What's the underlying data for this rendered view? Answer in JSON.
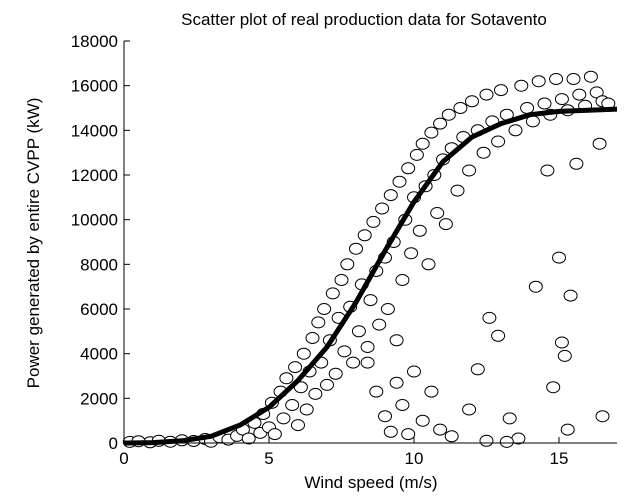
{
  "chart_data": {
    "type": "scatter",
    "title": "Scatter plot of real production data for Sotavento",
    "xlabel": "Wind speed (m/s)",
    "ylabel": "Power generated by entire CVPP (kW)",
    "xlim": [
      0,
      17
    ],
    "ylim": [
      0,
      18000
    ],
    "x_ticks": [
      0,
      5,
      10,
      15
    ],
    "y_ticks": [
      0,
      2000,
      4000,
      6000,
      8000,
      10000,
      12000,
      14000,
      16000,
      18000
    ],
    "grid": false,
    "legend": "none",
    "series": [
      {
        "kind": "scatter",
        "marker": "open-circle",
        "color": "#000000",
        "points": [
          [
            0.2,
            50
          ],
          [
            0.5,
            80
          ],
          [
            0.9,
            30
          ],
          [
            1.2,
            100
          ],
          [
            1.6,
            60
          ],
          [
            2.0,
            120
          ],
          [
            2.4,
            90
          ],
          [
            2.8,
            180
          ],
          [
            3.0,
            60
          ],
          [
            3.3,
            260
          ],
          [
            3.6,
            150
          ],
          [
            3.9,
            320
          ],
          [
            4.1,
            600
          ],
          [
            4.3,
            200
          ],
          [
            4.5,
            900
          ],
          [
            4.7,
            450
          ],
          [
            4.8,
            1300
          ],
          [
            5.0,
            700
          ],
          [
            5.1,
            1800
          ],
          [
            5.2,
            400
          ],
          [
            5.4,
            2300
          ],
          [
            5.5,
            1100
          ],
          [
            5.6,
            2900
          ],
          [
            5.8,
            1700
          ],
          [
            5.9,
            3400
          ],
          [
            6.0,
            800
          ],
          [
            6.1,
            2500
          ],
          [
            6.2,
            4000
          ],
          [
            6.3,
            1500
          ],
          [
            6.4,
            3200
          ],
          [
            6.5,
            4700
          ],
          [
            6.6,
            2200
          ],
          [
            6.7,
            5400
          ],
          [
            6.8,
            3600
          ],
          [
            6.9,
            6000
          ],
          [
            7.0,
            2600
          ],
          [
            7.1,
            4600
          ],
          [
            7.2,
            6700
          ],
          [
            7.3,
            3100
          ],
          [
            7.4,
            5600
          ],
          [
            7.5,
            7300
          ],
          [
            7.6,
            4100
          ],
          [
            7.7,
            8000
          ],
          [
            7.8,
            6100
          ],
          [
            7.9,
            3600
          ],
          [
            8.0,
            8700
          ],
          [
            8.1,
            5000
          ],
          [
            8.2,
            7100
          ],
          [
            8.3,
            9300
          ],
          [
            8.4,
            4300
          ],
          [
            8.5,
            6400
          ],
          [
            8.6,
            9900
          ],
          [
            8.7,
            7700
          ],
          [
            8.8,
            5300
          ],
          [
            8.9,
            10500
          ],
          [
            9.0,
            8300
          ],
          [
            9.1,
            6000
          ],
          [
            9.2,
            11100
          ],
          [
            9.3,
            9000
          ],
          [
            9.4,
            4600
          ],
          [
            9.5,
            11700
          ],
          [
            9.6,
            7300
          ],
          [
            9.7,
            10000
          ],
          [
            9.8,
            12300
          ],
          [
            9.9,
            8500
          ],
          [
            10.0,
            11000
          ],
          [
            10.1,
            12900
          ],
          [
            10.2,
            9500
          ],
          [
            10.3,
            13400
          ],
          [
            10.4,
            11500
          ],
          [
            10.5,
            8000
          ],
          [
            10.6,
            13900
          ],
          [
            10.7,
            12000
          ],
          [
            10.8,
            10300
          ],
          [
            10.9,
            14300
          ],
          [
            11.0,
            12700
          ],
          [
            11.1,
            9800
          ],
          [
            11.2,
            14700
          ],
          [
            11.3,
            13200
          ],
          [
            11.5,
            11300
          ],
          [
            11.6,
            15000
          ],
          [
            11.7,
            13700
          ],
          [
            11.9,
            12200
          ],
          [
            12.0,
            15300
          ],
          [
            12.2,
            14000
          ],
          [
            12.4,
            13000
          ],
          [
            12.5,
            15600
          ],
          [
            12.7,
            14400
          ],
          [
            12.9,
            13500
          ],
          [
            13.0,
            15800
          ],
          [
            13.2,
            14700
          ],
          [
            13.5,
            14000
          ],
          [
            13.7,
            16000
          ],
          [
            13.9,
            15000
          ],
          [
            14.1,
            14400
          ],
          [
            14.3,
            16200
          ],
          [
            14.5,
            15200
          ],
          [
            14.7,
            14700
          ],
          [
            14.9,
            16300
          ],
          [
            15.1,
            15400
          ],
          [
            15.3,
            14900
          ],
          [
            15.5,
            16300
          ],
          [
            15.7,
            15600
          ],
          [
            15.9,
            15100
          ],
          [
            16.1,
            16400
          ],
          [
            16.3,
            15700
          ],
          [
            16.5,
            15300
          ],
          [
            16.7,
            15200
          ],
          [
            16.4,
            13400
          ],
          [
            15.6,
            12500
          ],
          [
            14.6,
            12200
          ],
          [
            8.4,
            3600
          ],
          [
            8.7,
            2300
          ],
          [
            9.0,
            1200
          ],
          [
            9.2,
            500
          ],
          [
            9.4,
            2700
          ],
          [
            9.6,
            1700
          ],
          [
            9.8,
            400
          ],
          [
            10.0,
            3200
          ],
          [
            10.3,
            1000
          ],
          [
            10.6,
            2300
          ],
          [
            10.9,
            600
          ],
          [
            11.3,
            300
          ],
          [
            11.9,
            1500
          ],
          [
            12.2,
            3300
          ],
          [
            12.6,
            5600
          ],
          [
            12.9,
            4800
          ],
          [
            13.3,
            1100
          ],
          [
            13.6,
            200
          ],
          [
            14.2,
            7000
          ],
          [
            14.8,
            2500
          ],
          [
            15.0,
            8300
          ],
          [
            15.1,
            4500
          ],
          [
            15.2,
            3900
          ],
          [
            15.3,
            600
          ],
          [
            15.4,
            6600
          ],
          [
            16.5,
            1200
          ],
          [
            12.5,
            100
          ],
          [
            13.2,
            50
          ]
        ]
      },
      {
        "kind": "line",
        "color": "#000000",
        "points": [
          [
            0,
            0
          ],
          [
            1,
            20
          ],
          [
            2,
            100
          ],
          [
            3,
            300
          ],
          [
            4,
            800
          ],
          [
            5,
            1600
          ],
          [
            6,
            2800
          ],
          [
            7,
            4300
          ],
          [
            8,
            6300
          ],
          [
            9,
            8600
          ],
          [
            10,
            10800
          ],
          [
            11,
            12600
          ],
          [
            12,
            13700
          ],
          [
            13,
            14300
          ],
          [
            14,
            14700
          ],
          [
            15,
            14850
          ],
          [
            16,
            14900
          ],
          [
            17,
            14950
          ]
        ]
      }
    ]
  }
}
